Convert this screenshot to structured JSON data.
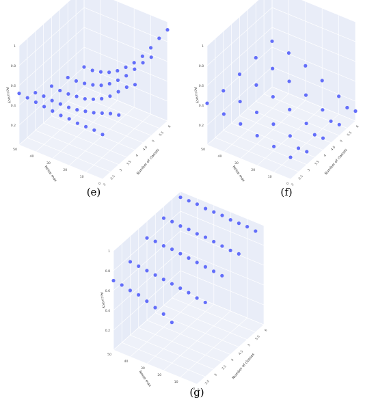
{
  "figure": {
    "colors": {
      "pane_back": "#e6ebf7",
      "pane_left": "#e9edf8",
      "pane_floor": "#eef1f9",
      "grid": "#ffffff",
      "marker": "#636efa"
    }
  },
  "chart_data": [
    {
      "id": "e",
      "caption": "(e)",
      "type": "scatter",
      "projection": "3d",
      "xlabel": "Number of classes",
      "ylabel": "Noise max",
      "zlabel": "Accuracy",
      "x_ticks": [
        "2",
        "2.5",
        "3",
        "3.5",
        "4",
        "4.5",
        "5",
        "5.5",
        "6"
      ],
      "y_ticks": [
        "0",
        "10",
        "20",
        "30",
        "40",
        "50"
      ],
      "z_ticks": [
        "0.2",
        "0.4",
        "0.6",
        "0.8",
        "1"
      ],
      "xlim": [
        2,
        6
      ],
      "ylim": [
        0,
        50
      ],
      "zlim": [
        0,
        1
      ],
      "series": [
        {
          "x": [
            2,
            2,
            2,
            2,
            2,
            2,
            2,
            2,
            2,
            2,
            2
          ],
          "y": [
            50,
            45,
            40,
            35,
            30,
            25,
            20,
            15,
            10,
            5,
            0
          ],
          "z": [
            0.52,
            0.51,
            0.5,
            0.49,
            0.48,
            0.47,
            0.47,
            0.46,
            0.46,
            0.46,
            0.45
          ]
        },
        {
          "x": [
            3,
            3,
            3,
            3,
            3,
            3,
            3,
            3,
            3,
            3,
            3
          ],
          "y": [
            50,
            45,
            40,
            35,
            30,
            25,
            20,
            15,
            10,
            5,
            0
          ],
          "z": [
            0.38,
            0.38,
            0.37,
            0.37,
            0.37,
            0.38,
            0.4,
            0.42,
            0.45,
            0.48,
            0.5
          ]
        },
        {
          "x": [
            4,
            4,
            4,
            4,
            4,
            4,
            4,
            4,
            4,
            4,
            4
          ],
          "y": [
            50,
            45,
            40,
            35,
            30,
            25,
            20,
            15,
            10,
            5,
            0
          ],
          "z": [
            0.3,
            0.29,
            0.29,
            0.3,
            0.31,
            0.34,
            0.38,
            0.44,
            0.52,
            0.6,
            0.66
          ]
        },
        {
          "x": [
            5,
            5,
            5,
            5,
            5,
            5,
            5,
            5,
            5,
            5,
            5
          ],
          "y": [
            50,
            45,
            40,
            35,
            30,
            25,
            20,
            15,
            10,
            5,
            0
          ],
          "z": [
            0.24,
            0.24,
            0.25,
            0.27,
            0.3,
            0.35,
            0.42,
            0.5,
            0.6,
            0.7,
            0.79
          ]
        },
        {
          "x": [
            6,
            6,
            6,
            6,
            6,
            6,
            6,
            6,
            6,
            6,
            6
          ],
          "y": [
            50,
            45,
            40,
            35,
            30,
            25,
            20,
            15,
            10,
            5,
            0
          ],
          "z": [
            0.2,
            0.2,
            0.22,
            0.25,
            0.3,
            0.37,
            0.45,
            0.55,
            0.67,
            0.8,
            0.92
          ]
        }
      ]
    },
    {
      "id": "f",
      "caption": "(f)",
      "type": "scatter",
      "projection": "3d",
      "xlabel": "Number of classes",
      "ylabel": "Noise max",
      "zlabel": "Accuracy",
      "x_ticks": [
        "2",
        "2.5",
        "3",
        "3.5",
        "4",
        "4.5",
        "5",
        "5.5",
        "6"
      ],
      "y_ticks": [
        "0",
        "10",
        "20",
        "30",
        "40",
        "50"
      ],
      "z_ticks": [
        "0.2",
        "0.4",
        "0.6",
        "0.8",
        "1"
      ],
      "xlim": [
        2,
        6
      ],
      "ylim": [
        0,
        50
      ],
      "zlim": [
        0,
        1
      ],
      "series": [
        {
          "x": [
            2,
            2,
            2,
            2,
            2,
            2
          ],
          "y": [
            50,
            40,
            30,
            20,
            10,
            0
          ],
          "z": [
            0.42,
            0.38,
            0.35,
            0.3,
            0.26,
            0.22
          ]
        },
        {
          "x": [
            3,
            3,
            3,
            3,
            3,
            3,
            3
          ],
          "y": [
            50,
            40,
            30,
            20,
            10,
            5,
            0
          ],
          "z": [
            0.4,
            0.36,
            0.32,
            0.27,
            0.22,
            0.13,
            0.13
          ]
        },
        {
          "x": [
            4,
            4,
            4,
            4,
            4,
            4,
            4
          ],
          "y": [
            50,
            40,
            30,
            20,
            10,
            5,
            0
          ],
          "z": [
            0.42,
            0.38,
            0.33,
            0.27,
            0.2,
            0.12,
            0.12
          ]
        },
        {
          "x": [
            5,
            5,
            5,
            5,
            5,
            5,
            5
          ],
          "y": [
            50,
            40,
            30,
            20,
            10,
            5,
            0
          ],
          "z": [
            0.44,
            0.4,
            0.34,
            0.27,
            0.19,
            0.11,
            0.11
          ]
        },
        {
          "x": [
            6,
            6,
            6,
            6,
            6,
            6,
            6
          ],
          "y": [
            50,
            40,
            30,
            20,
            10,
            5,
            0
          ],
          "z": [
            0.46,
            0.41,
            0.35,
            0.27,
            0.18,
            0.1,
            0.1
          ]
        }
      ]
    },
    {
      "id": "g",
      "caption": "(g)",
      "type": "scatter",
      "projection": "3d",
      "xlabel": "Number of classes",
      "ylabel": "Noise max",
      "zlabel": "Accuracy",
      "x_ticks": [
        "2",
        "2.5",
        "3",
        "3.5",
        "4",
        "4.5",
        "5",
        "5.5",
        "6"
      ],
      "y_ticks": [
        "0",
        "10",
        "20",
        "30",
        "40",
        "50"
      ],
      "z_ticks": [
        "0.2",
        "0.4",
        "0.6",
        "0.8",
        "1"
      ],
      "xlim": [
        2,
        6
      ],
      "ylim": [
        0,
        50
      ],
      "zlim": [
        0,
        1
      ],
      "series": [
        {
          "x": [
            2,
            2,
            2,
            2,
            2,
            2,
            2,
            2
          ],
          "y": [
            50,
            45,
            40,
            35,
            30,
            25,
            20,
            15
          ],
          "z": [
            0.7,
            0.69,
            0.67,
            0.66,
            0.63,
            0.6,
            0.57,
            0.52
          ]
        },
        {
          "x": [
            3,
            3,
            3,
            3,
            3,
            3,
            3,
            3,
            3,
            3
          ],
          "y": [
            50,
            45,
            40,
            35,
            30,
            25,
            20,
            15,
            10,
            5
          ],
          "z": [
            0.74,
            0.73,
            0.72,
            0.71,
            0.7,
            0.69,
            0.68,
            0.67,
            0.65,
            0.64
          ]
        },
        {
          "x": [
            4,
            4,
            4,
            4,
            4,
            4,
            4,
            4,
            4,
            4
          ],
          "y": [
            50,
            45,
            40,
            35,
            30,
            25,
            20,
            15,
            10,
            5
          ],
          "z": [
            0.83,
            0.83,
            0.82,
            0.82,
            0.81,
            0.8,
            0.79,
            0.78,
            0.77,
            0.76
          ]
        },
        {
          "x": [
            5,
            5,
            5,
            5,
            5,
            5,
            5,
            5,
            5,
            5
          ],
          "y": [
            50,
            45,
            40,
            35,
            30,
            25,
            20,
            15,
            10,
            5
          ],
          "z": [
            0.88,
            0.88,
            0.87,
            0.87,
            0.86,
            0.86,
            0.85,
            0.84,
            0.83,
            0.83
          ]
        },
        {
          "x": [
            6,
            6,
            6,
            6,
            6,
            6,
            6,
            6,
            6,
            6
          ],
          "y": [
            50,
            45,
            40,
            35,
            30,
            25,
            20,
            15,
            10,
            5
          ],
          "z": [
            0.94,
            0.94,
            0.94,
            0.93,
            0.93,
            0.93,
            0.92,
            0.92,
            0.92,
            0.91
          ]
        }
      ]
    }
  ]
}
